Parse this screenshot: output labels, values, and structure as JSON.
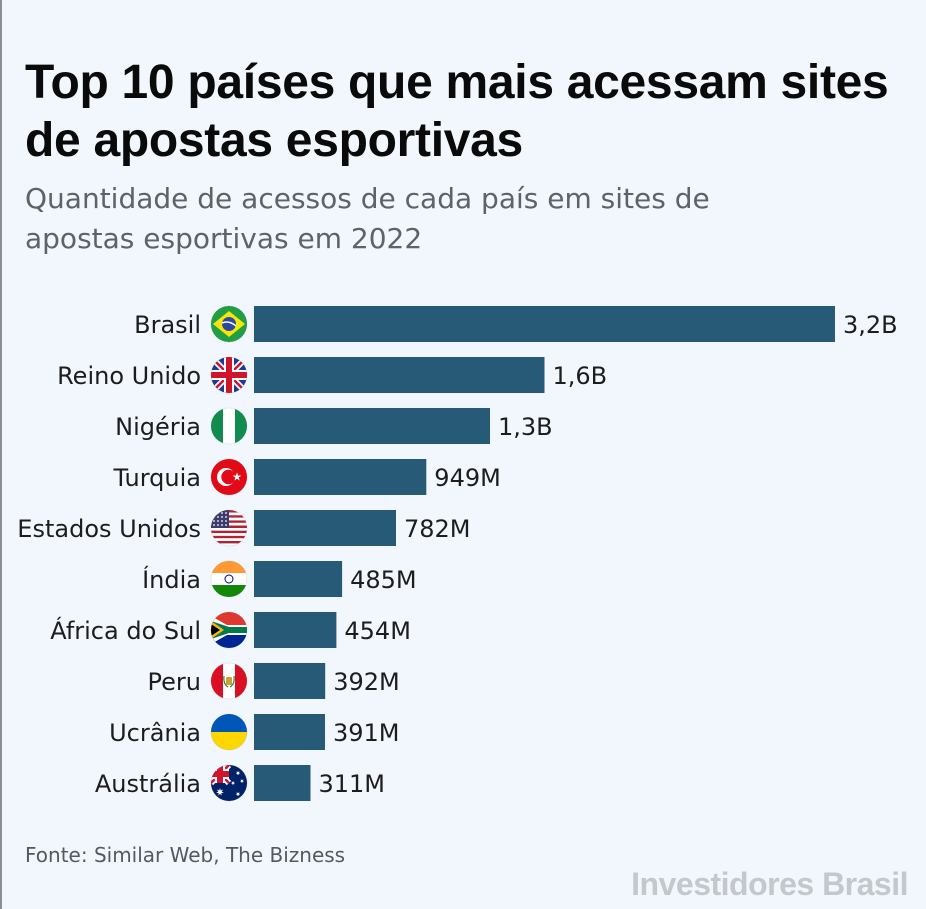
{
  "title": "Top 10 países que mais acessam sites de apostas esportivas",
  "subtitle": "Quantidade de acessos de cada país em sites de apostas esportivas em 2022",
  "source": "Fonte: Similar Web, The Bizness",
  "brand": "Investidores Brasil",
  "colors": {
    "bar": "#275a77",
    "background": "#f1f7fd"
  },
  "chart_data": {
    "type": "bar",
    "orientation": "horizontal",
    "categories": [
      "Brasil",
      "Reino Unido",
      "Nigéria",
      "Turquia",
      "Estados Unidos",
      "Índia",
      "África do Sul",
      "Peru",
      "Ucrânia",
      "Austrália"
    ],
    "values": [
      3200,
      1600,
      1300,
      949,
      782,
      485,
      454,
      392,
      391,
      311
    ],
    "unit": "milhões de acessos",
    "value_labels": [
      "3,2B",
      "1,6B",
      "1,3B",
      "949M",
      "782M",
      "485M",
      "454M",
      "392M",
      "391M",
      "311M"
    ],
    "flags": [
      "flag-brazil-icon",
      "flag-uk-icon",
      "flag-nigeria-icon",
      "flag-turkey-icon",
      "flag-usa-icon",
      "flag-india-icon",
      "flag-south-africa-icon",
      "flag-peru-icon",
      "flag-ukraine-icon",
      "flag-australia-icon"
    ],
    "xlim": [
      0,
      3200
    ],
    "grid": false,
    "legend": "none"
  }
}
